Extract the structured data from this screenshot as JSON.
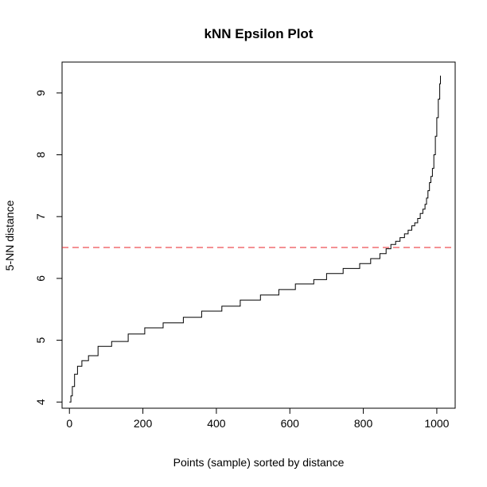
{
  "chart_data": {
    "type": "line",
    "title": "kNN Epsilon Plot",
    "xlabel": "Points (sample) sorted by distance",
    "ylabel": "5-NN distance",
    "xlim": [
      -20,
      1050
    ],
    "ylim": [
      3.9,
      9.5
    ],
    "x_ticks": [
      0,
      200,
      400,
      600,
      800,
      1000
    ],
    "y_ticks": [
      4,
      5,
      6,
      7,
      8,
      9
    ],
    "grid": false,
    "legend": "none",
    "colors": {
      "line": "#000000",
      "reference": "#e8232a"
    },
    "series": [
      {
        "style": "step",
        "x": [
          0,
          4,
          8,
          14,
          22,
          34,
          52,
          78,
          115,
          160,
          205,
          255,
          310,
          360,
          415,
          465,
          520,
          570,
          615,
          665,
          700,
          745,
          790,
          820,
          845,
          862,
          875,
          888,
          900,
          912,
          922,
          932,
          940,
          948,
          955,
          962,
          968,
          972,
          976,
          980,
          984,
          988,
          992,
          996,
          1000,
          1004,
          1008,
          1010
        ],
        "y": [
          4.0,
          4.1,
          4.25,
          4.45,
          4.58,
          4.67,
          4.75,
          4.9,
          4.98,
          5.1,
          5.2,
          5.28,
          5.37,
          5.47,
          5.55,
          5.65,
          5.73,
          5.82,
          5.91,
          5.98,
          6.08,
          6.16,
          6.24,
          6.32,
          6.4,
          6.48,
          6.55,
          6.6,
          6.66,
          6.72,
          6.78,
          6.85,
          6.9,
          6.97,
          7.05,
          7.12,
          7.2,
          7.3,
          7.42,
          7.55,
          7.65,
          7.78,
          8.0,
          8.3,
          8.6,
          8.9,
          9.15,
          9.28
        ]
      }
    ],
    "reference_line": {
      "orientation": "horizontal",
      "y": 6.5,
      "style": "dashed"
    }
  }
}
